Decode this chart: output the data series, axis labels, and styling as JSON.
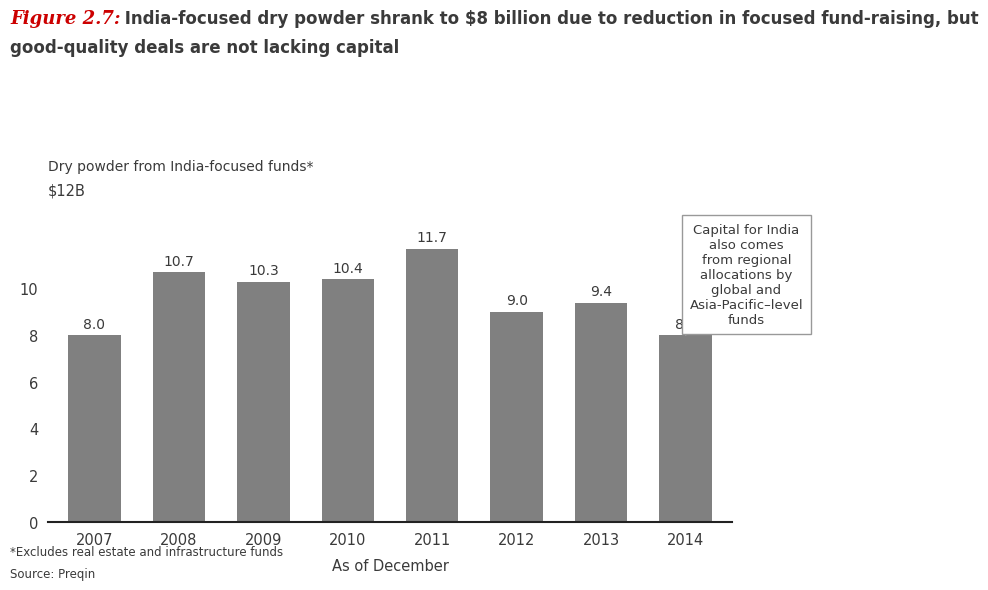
{
  "years": [
    "2007",
    "2008",
    "2009",
    "2010",
    "2011",
    "2012",
    "2013",
    "2014"
  ],
  "values": [
    8.0,
    10.7,
    10.3,
    10.4,
    11.7,
    9.0,
    9.4,
    8.0
  ],
  "bar_color": "#808080",
  "background_color": "#ffffff",
  "title_figure": "Figure 2.7:",
  "title_rest": " India-focused dry powder shrank to $8 billion due to reduction in focused fund-raising, but",
  "title_line2": "good-quality deals are not lacking capital",
  "ylabel_top": "$12B",
  "ylabel_label": "Dry powder from India-focused funds*",
  "xlabel": "As of December",
  "yticks": [
    0,
    2,
    4,
    6,
    8,
    10
  ],
  "ylim": [
    0,
    13.5
  ],
  "footnote1": "*Excludes real estate and infrastructure funds",
  "footnote2": "Source: Preqin",
  "annotation_text": "Capital for India\nalso comes\nfrom regional\nallocations by\nglobal and\nAsia-Pacific–level\nfunds",
  "title_color_figure": "#cc0000",
  "title_color_text": "#3a3a3a",
  "bar_label_color": "#3a3a3a",
  "annotation_fontsize": 9.5,
  "bar_width": 0.62
}
